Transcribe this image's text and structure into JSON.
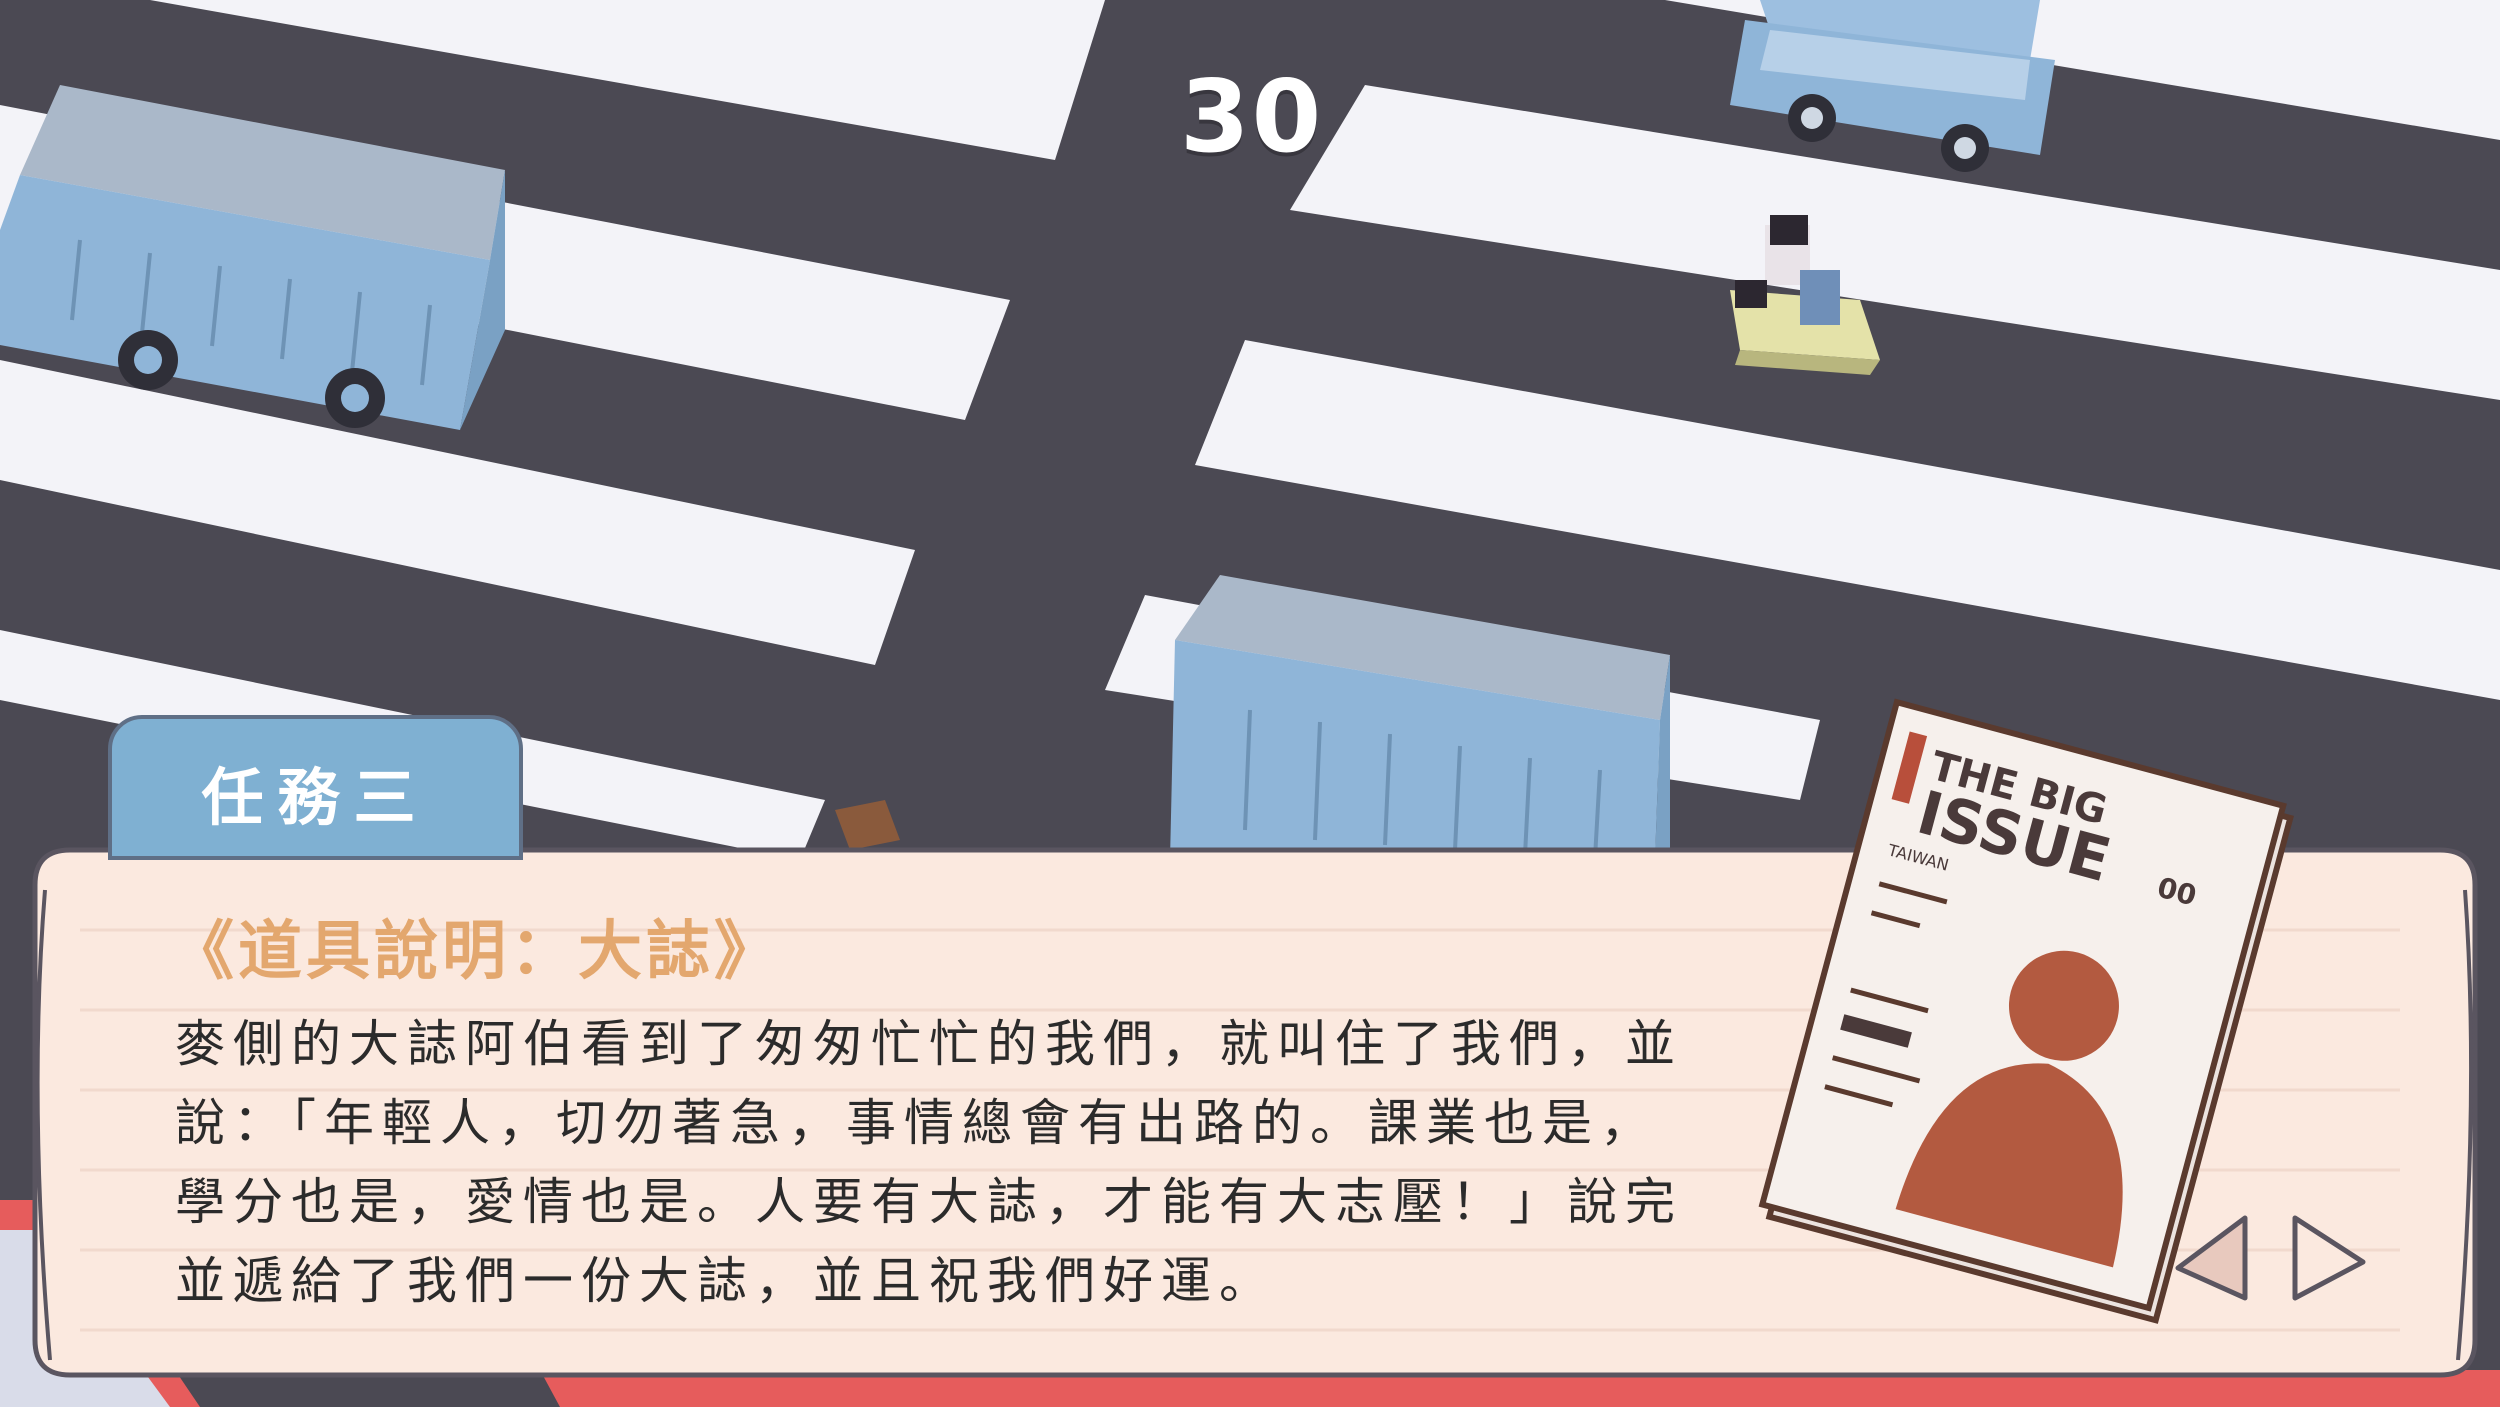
{
  "hud": {
    "score": "30"
  },
  "mission_tab": {
    "label": "任務三"
  },
  "dialog": {
    "title": "《道具說明：大誌》",
    "body_lines": [
      "麥側的大誌阿伯看到了匆匆忙忙的我們，就叫住了我們，並",
      "說：「年輕人，切勿著急，事情總會有出路的。課業也是，",
      "學分也是，愛情也是。人要有大誌，才能有大志壓！」說完",
      "並遞給了我們一份大誌，並且祝我們好運。"
    ]
  },
  "magazine": {
    "masthead_line1": "THE BIG",
    "masthead_line2": "ISSUE",
    "edition": "TAIWAN",
    "issue_number": "00"
  },
  "icons": {
    "prev": "triangle-left-icon",
    "next": "triangle-right-icon"
  },
  "colors": {
    "road": "#4b4953",
    "stripe": "#f3f3f8",
    "dialog_bg": "#fbe9df",
    "dialog_border": "#5a5560",
    "tab_bg": "#7fb0d2",
    "title_accent": "#e3a76e",
    "vehicle_blue": "#8fb5d8",
    "bus_roof": "#aab8c9"
  }
}
